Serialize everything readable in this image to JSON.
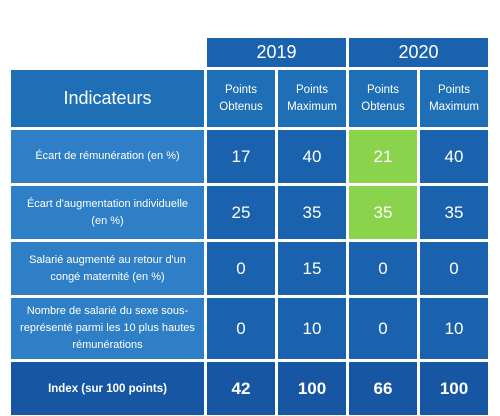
{
  "header": {
    "indicators_label": "Indicateurs",
    "years": [
      "2019",
      "2020"
    ],
    "sub_cols": [
      "Points Obtenus",
      "Points Maximum",
      "Points Obtenus",
      "Points Maximum"
    ]
  },
  "rows": [
    {
      "label": "Écart de rémunération (en %)",
      "values": [
        "17",
        "40",
        "21",
        "40"
      ]
    },
    {
      "label": "Écart d'augmentation individuelle (en %)",
      "values": [
        "25",
        "35",
        "35",
        "35"
      ]
    },
    {
      "label": "Salarié augmenté au retour d'un congé maternité (en %)",
      "values": [
        "0",
        "15",
        "0",
        "0"
      ]
    },
    {
      "label": "Nombre de salarié du sexe sous-représenté parmi les 10 plus hautes rémunérations",
      "values": [
        "0",
        "10",
        "0",
        "10"
      ]
    }
  ],
  "index_row": {
    "label": "Index (sur 100 points)",
    "values": [
      "42",
      "100",
      "66",
      "100"
    ]
  },
  "colors": {
    "header_blue": "#1a62ad",
    "row_blue": "#2e7fc6",
    "highlight_green": "#8ad34d"
  }
}
